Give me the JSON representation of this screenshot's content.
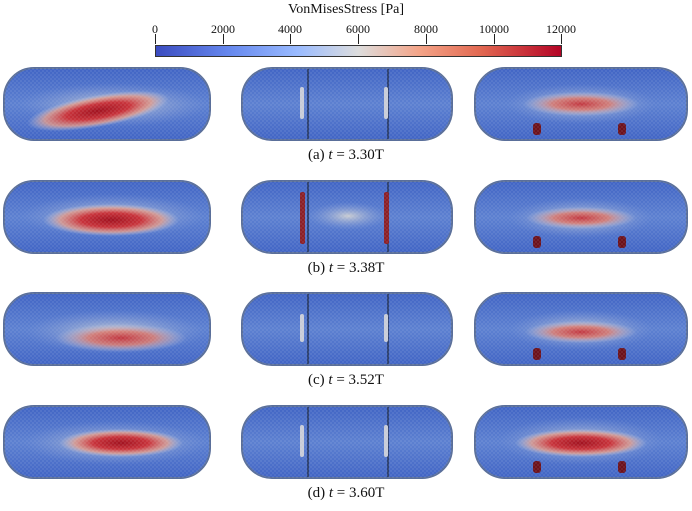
{
  "colorbar": {
    "title": "VonMisesStress [Pa]",
    "ticks": [
      "0",
      "2000",
      "4000",
      "6000",
      "8000",
      "10000",
      "12000"
    ],
    "colors": [
      "#3b4cc0",
      "#9abbff",
      "#dddddd",
      "#f4a488",
      "#b40426"
    ]
  },
  "rows": [
    {
      "label": "(a)",
      "var": "t",
      "eq": "= 3.30T"
    },
    {
      "label": "(b)",
      "var": "t",
      "eq": "= 3.38T"
    },
    {
      "label": "(c)",
      "var": "t",
      "eq": "= 3.52T"
    },
    {
      "label": "(d)",
      "var": "t",
      "eq": "= 3.60T"
    }
  ]
}
